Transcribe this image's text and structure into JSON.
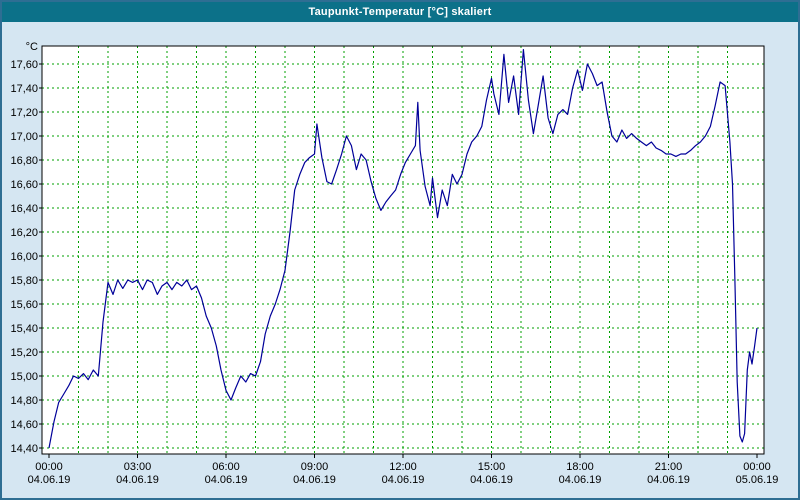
{
  "window": {
    "title": "Taupunkt-Temperatur [°C] skaliert"
  },
  "colors": {
    "titlebar_bg": "#0c7189",
    "titlebar_text": "#ffffff",
    "background": "#d5e6f2",
    "plot_bg": "#ffffff",
    "grid": "#00a000",
    "axis": "#000000",
    "line": "#000099"
  },
  "chart_data": {
    "type": "line",
    "title": "Taupunkt-Temperatur [°C] skaliert",
    "xlabel": "",
    "ylabel": "°C",
    "xlim": [
      0,
      24
    ],
    "ylim": [
      14.35,
      17.75
    ],
    "grid": true,
    "grid_x_step_hours": 1,
    "legend": "none",
    "y_ticks": [
      17.6,
      17.4,
      17.2,
      17.0,
      16.8,
      16.6,
      16.4,
      16.2,
      16.0,
      15.8,
      15.6,
      15.4,
      15.2,
      15.0,
      14.8,
      14.6,
      14.4
    ],
    "y_tick_labels": [
      "17,60",
      "17,40",
      "17,20",
      "17,00",
      "16,80",
      "16,60",
      "16,40",
      "16,20",
      "16,00",
      "15,80",
      "15,60",
      "15,40",
      "15,20",
      "15,00",
      "14,80",
      "14,60",
      "14,40"
    ],
    "x_ticks": [
      {
        "t": 0,
        "time": "00:00",
        "date": "04.06.19"
      },
      {
        "t": 3,
        "time": "03:00",
        "date": "04.06.19"
      },
      {
        "t": 6,
        "time": "06:00",
        "date": "04.06.19"
      },
      {
        "t": 9,
        "time": "09:00",
        "date": "04.06.19"
      },
      {
        "t": 12,
        "time": "12:00",
        "date": "04.06.19"
      },
      {
        "t": 15,
        "time": "15:00",
        "date": "04.06.19"
      },
      {
        "t": 18,
        "time": "18:00",
        "date": "04.06.19"
      },
      {
        "t": 21,
        "time": "21:00",
        "date": "04.06.19"
      },
      {
        "t": 24,
        "time": "00:00",
        "date": "05.06.19"
      }
    ],
    "series": [
      {
        "name": "Taupunkt-Temperatur",
        "color": "#000099",
        "points": [
          [
            0.0,
            14.4
          ],
          [
            0.17,
            14.62
          ],
          [
            0.33,
            14.78
          ],
          [
            0.5,
            14.85
          ],
          [
            0.67,
            14.92
          ],
          [
            0.83,
            15.0
          ],
          [
            1.0,
            14.98
          ],
          [
            1.17,
            15.02
          ],
          [
            1.33,
            14.97
          ],
          [
            1.5,
            15.05
          ],
          [
            1.67,
            15.0
          ],
          [
            1.83,
            15.45
          ],
          [
            2.0,
            15.78
          ],
          [
            2.17,
            15.68
          ],
          [
            2.33,
            15.8
          ],
          [
            2.5,
            15.73
          ],
          [
            2.67,
            15.8
          ],
          [
            2.83,
            15.78
          ],
          [
            3.0,
            15.8
          ],
          [
            3.17,
            15.72
          ],
          [
            3.33,
            15.8
          ],
          [
            3.5,
            15.78
          ],
          [
            3.67,
            15.68
          ],
          [
            3.83,
            15.75
          ],
          [
            4.0,
            15.78
          ],
          [
            4.17,
            15.72
          ],
          [
            4.33,
            15.78
          ],
          [
            4.5,
            15.75
          ],
          [
            4.67,
            15.8
          ],
          [
            4.83,
            15.72
          ],
          [
            5.0,
            15.75
          ],
          [
            5.17,
            15.65
          ],
          [
            5.33,
            15.5
          ],
          [
            5.5,
            15.4
          ],
          [
            5.67,
            15.25
          ],
          [
            5.83,
            15.05
          ],
          [
            6.0,
            14.88
          ],
          [
            6.17,
            14.8
          ],
          [
            6.33,
            14.9
          ],
          [
            6.5,
            15.0
          ],
          [
            6.67,
            14.95
          ],
          [
            6.83,
            15.02
          ],
          [
            7.0,
            15.0
          ],
          [
            7.17,
            15.12
          ],
          [
            7.33,
            15.35
          ],
          [
            7.5,
            15.5
          ],
          [
            7.67,
            15.6
          ],
          [
            7.83,
            15.72
          ],
          [
            8.0,
            15.88
          ],
          [
            8.17,
            16.2
          ],
          [
            8.33,
            16.55
          ],
          [
            8.5,
            16.68
          ],
          [
            8.67,
            16.78
          ],
          [
            8.83,
            16.82
          ],
          [
            9.0,
            16.85
          ],
          [
            9.08,
            17.1
          ],
          [
            9.25,
            16.82
          ],
          [
            9.42,
            16.62
          ],
          [
            9.58,
            16.6
          ],
          [
            9.75,
            16.72
          ],
          [
            9.92,
            16.85
          ],
          [
            10.08,
            17.0
          ],
          [
            10.25,
            16.92
          ],
          [
            10.42,
            16.72
          ],
          [
            10.58,
            16.85
          ],
          [
            10.75,
            16.8
          ],
          [
            10.92,
            16.62
          ],
          [
            11.08,
            16.48
          ],
          [
            11.25,
            16.38
          ],
          [
            11.42,
            16.45
          ],
          [
            11.58,
            16.5
          ],
          [
            11.75,
            16.55
          ],
          [
            11.92,
            16.68
          ],
          [
            12.08,
            16.78
          ],
          [
            12.25,
            16.85
          ],
          [
            12.42,
            16.92
          ],
          [
            12.5,
            17.28
          ],
          [
            12.58,
            16.88
          ],
          [
            12.75,
            16.58
          ],
          [
            12.92,
            16.42
          ],
          [
            13.0,
            16.65
          ],
          [
            13.17,
            16.32
          ],
          [
            13.33,
            16.55
          ],
          [
            13.5,
            16.42
          ],
          [
            13.67,
            16.68
          ],
          [
            13.83,
            16.6
          ],
          [
            14.0,
            16.68
          ],
          [
            14.17,
            16.85
          ],
          [
            14.33,
            16.95
          ],
          [
            14.5,
            17.0
          ],
          [
            14.67,
            17.08
          ],
          [
            14.83,
            17.3
          ],
          [
            15.0,
            17.48
          ],
          [
            15.08,
            17.35
          ],
          [
            15.25,
            17.18
          ],
          [
            15.42,
            17.68
          ],
          [
            15.58,
            17.28
          ],
          [
            15.75,
            17.5
          ],
          [
            15.92,
            17.18
          ],
          [
            16.08,
            17.72
          ],
          [
            16.25,
            17.3
          ],
          [
            16.42,
            17.02
          ],
          [
            16.58,
            17.25
          ],
          [
            16.75,
            17.5
          ],
          [
            16.92,
            17.15
          ],
          [
            17.08,
            17.02
          ],
          [
            17.25,
            17.18
          ],
          [
            17.42,
            17.22
          ],
          [
            17.58,
            17.18
          ],
          [
            17.75,
            17.4
          ],
          [
            17.92,
            17.55
          ],
          [
            18.08,
            17.38
          ],
          [
            18.25,
            17.6
          ],
          [
            18.42,
            17.52
          ],
          [
            18.58,
            17.42
          ],
          [
            18.75,
            17.45
          ],
          [
            18.92,
            17.2
          ],
          [
            19.08,
            17.0
          ],
          [
            19.25,
            16.95
          ],
          [
            19.42,
            17.05
          ],
          [
            19.58,
            16.98
          ],
          [
            19.75,
            17.02
          ],
          [
            19.92,
            16.98
          ],
          [
            20.08,
            16.95
          ],
          [
            20.25,
            16.92
          ],
          [
            20.42,
            16.95
          ],
          [
            20.58,
            16.9
          ],
          [
            20.75,
            16.88
          ],
          [
            20.92,
            16.85
          ],
          [
            21.08,
            16.85
          ],
          [
            21.25,
            16.83
          ],
          [
            21.42,
            16.85
          ],
          [
            21.58,
            16.85
          ],
          [
            21.75,
            16.88
          ],
          [
            21.92,
            16.92
          ],
          [
            22.08,
            16.95
          ],
          [
            22.25,
            17.0
          ],
          [
            22.42,
            17.08
          ],
          [
            22.58,
            17.25
          ],
          [
            22.75,
            17.45
          ],
          [
            22.92,
            17.42
          ],
          [
            23.08,
            16.95
          ],
          [
            23.17,
            16.6
          ],
          [
            23.25,
            15.8
          ],
          [
            23.33,
            14.95
          ],
          [
            23.42,
            14.5
          ],
          [
            23.5,
            14.45
          ],
          [
            23.58,
            14.52
          ],
          [
            23.67,
            15.05
          ],
          [
            23.75,
            15.2
          ],
          [
            23.83,
            15.1
          ],
          [
            23.92,
            15.25
          ],
          [
            24.0,
            15.4
          ]
        ]
      }
    ]
  }
}
